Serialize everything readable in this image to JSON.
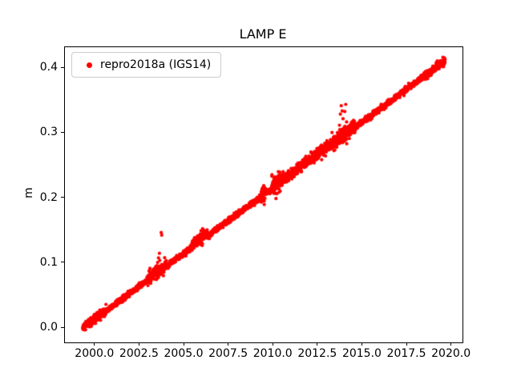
{
  "figure": {
    "background": "#ffffff"
  },
  "chart_data": {
    "type": "scatter",
    "title": "LAMP E",
    "xlabel": "",
    "ylabel": "m",
    "xlim": [
      1998.3,
      2020.6
    ],
    "ylim": [
      -0.022,
      0.432
    ],
    "grid": false,
    "legend_position": "upper-left",
    "x_ticks": [
      {
        "value": 2000.0,
        "label": "2000.0"
      },
      {
        "value": 2002.5,
        "label": "2002.5"
      },
      {
        "value": 2005.0,
        "label": "2005.0"
      },
      {
        "value": 2007.5,
        "label": "2007.5"
      },
      {
        "value": 2010.0,
        "label": "2010.0"
      },
      {
        "value": 2012.5,
        "label": "2012.5"
      },
      {
        "value": 2015.0,
        "label": "2015.0"
      },
      {
        "value": 2017.5,
        "label": "2017.5"
      },
      {
        "value": 2020.0,
        "label": "2020.0"
      }
    ],
    "y_ticks": [
      {
        "value": 0.0,
        "label": "0.0"
      },
      {
        "value": 0.1,
        "label": "0.1"
      },
      {
        "value": 0.2,
        "label": "0.2"
      },
      {
        "value": 0.3,
        "label": "0.3"
      },
      {
        "value": 0.4,
        "label": "0.4"
      }
    ],
    "series": [
      {
        "name": "repro2018a (IGS14)",
        "color": "#ff0000",
        "marker": "circle",
        "marker_radius_px": 2.1,
        "seed": 12345,
        "trend": {
          "x_start": 1999.3,
          "x_end": 2019.62,
          "y_start": 0.0,
          "y_end": 0.411,
          "samples_per_year": 160,
          "noise_sd": 0.002
        },
        "noisy_ranges": [
          {
            "x0": 1999.3,
            "x1": 2000.6,
            "sd": 0.0035,
            "bias": 0.0
          },
          {
            "x0": 2002.9,
            "x1": 2004.0,
            "sd": 0.0045,
            "bias": 0.002
          },
          {
            "x0": 2005.4,
            "x1": 2006.3,
            "sd": 0.0045,
            "bias": 0.004
          },
          {
            "x0": 2009.3,
            "x1": 2009.55,
            "sd": 0.007,
            "bias": 0.003
          },
          {
            "x0": 2009.9,
            "x1": 2010.4,
            "sd": 0.008,
            "bias": 0.003
          },
          {
            "x0": 2010.4,
            "x1": 2013.2,
            "sd": 0.0045,
            "bias": 0.001
          },
          {
            "x0": 2013.2,
            "x1": 2014.6,
            "sd": 0.006,
            "bias": 0.002
          },
          {
            "x0": 2018.4,
            "x1": 2019.62,
            "sd": 0.003,
            "bias": 0.0
          }
        ],
        "outliers": [
          [
            2003.45,
            0.096
          ],
          [
            2003.5,
            0.101
          ],
          [
            2003.55,
            0.108
          ],
          [
            2003.6,
            0.115
          ],
          [
            2003.62,
            0.104
          ],
          [
            2003.7,
            0.147
          ],
          [
            2003.73,
            0.143
          ],
          [
            2005.6,
            0.131
          ],
          [
            2005.65,
            0.136
          ],
          [
            2005.7,
            0.128
          ],
          [
            2009.42,
            0.196
          ],
          [
            2009.45,
            0.214
          ],
          [
            2009.48,
            0.19
          ],
          [
            2009.5,
            0.208
          ],
          [
            2010.0,
            0.219
          ],
          [
            2010.05,
            0.232
          ],
          [
            2010.1,
            0.228
          ],
          [
            2010.15,
            0.222
          ],
          [
            2013.7,
            0.312
          ],
          [
            2013.75,
            0.329
          ],
          [
            2013.8,
            0.342
          ],
          [
            2013.85,
            0.334
          ],
          [
            2013.9,
            0.322
          ],
          [
            2013.95,
            0.308
          ],
          [
            2014.0,
            0.333
          ],
          [
            2014.05,
            0.344
          ],
          [
            2014.1,
            0.317
          ],
          [
            2014.15,
            0.306
          ]
        ]
      }
    ]
  }
}
